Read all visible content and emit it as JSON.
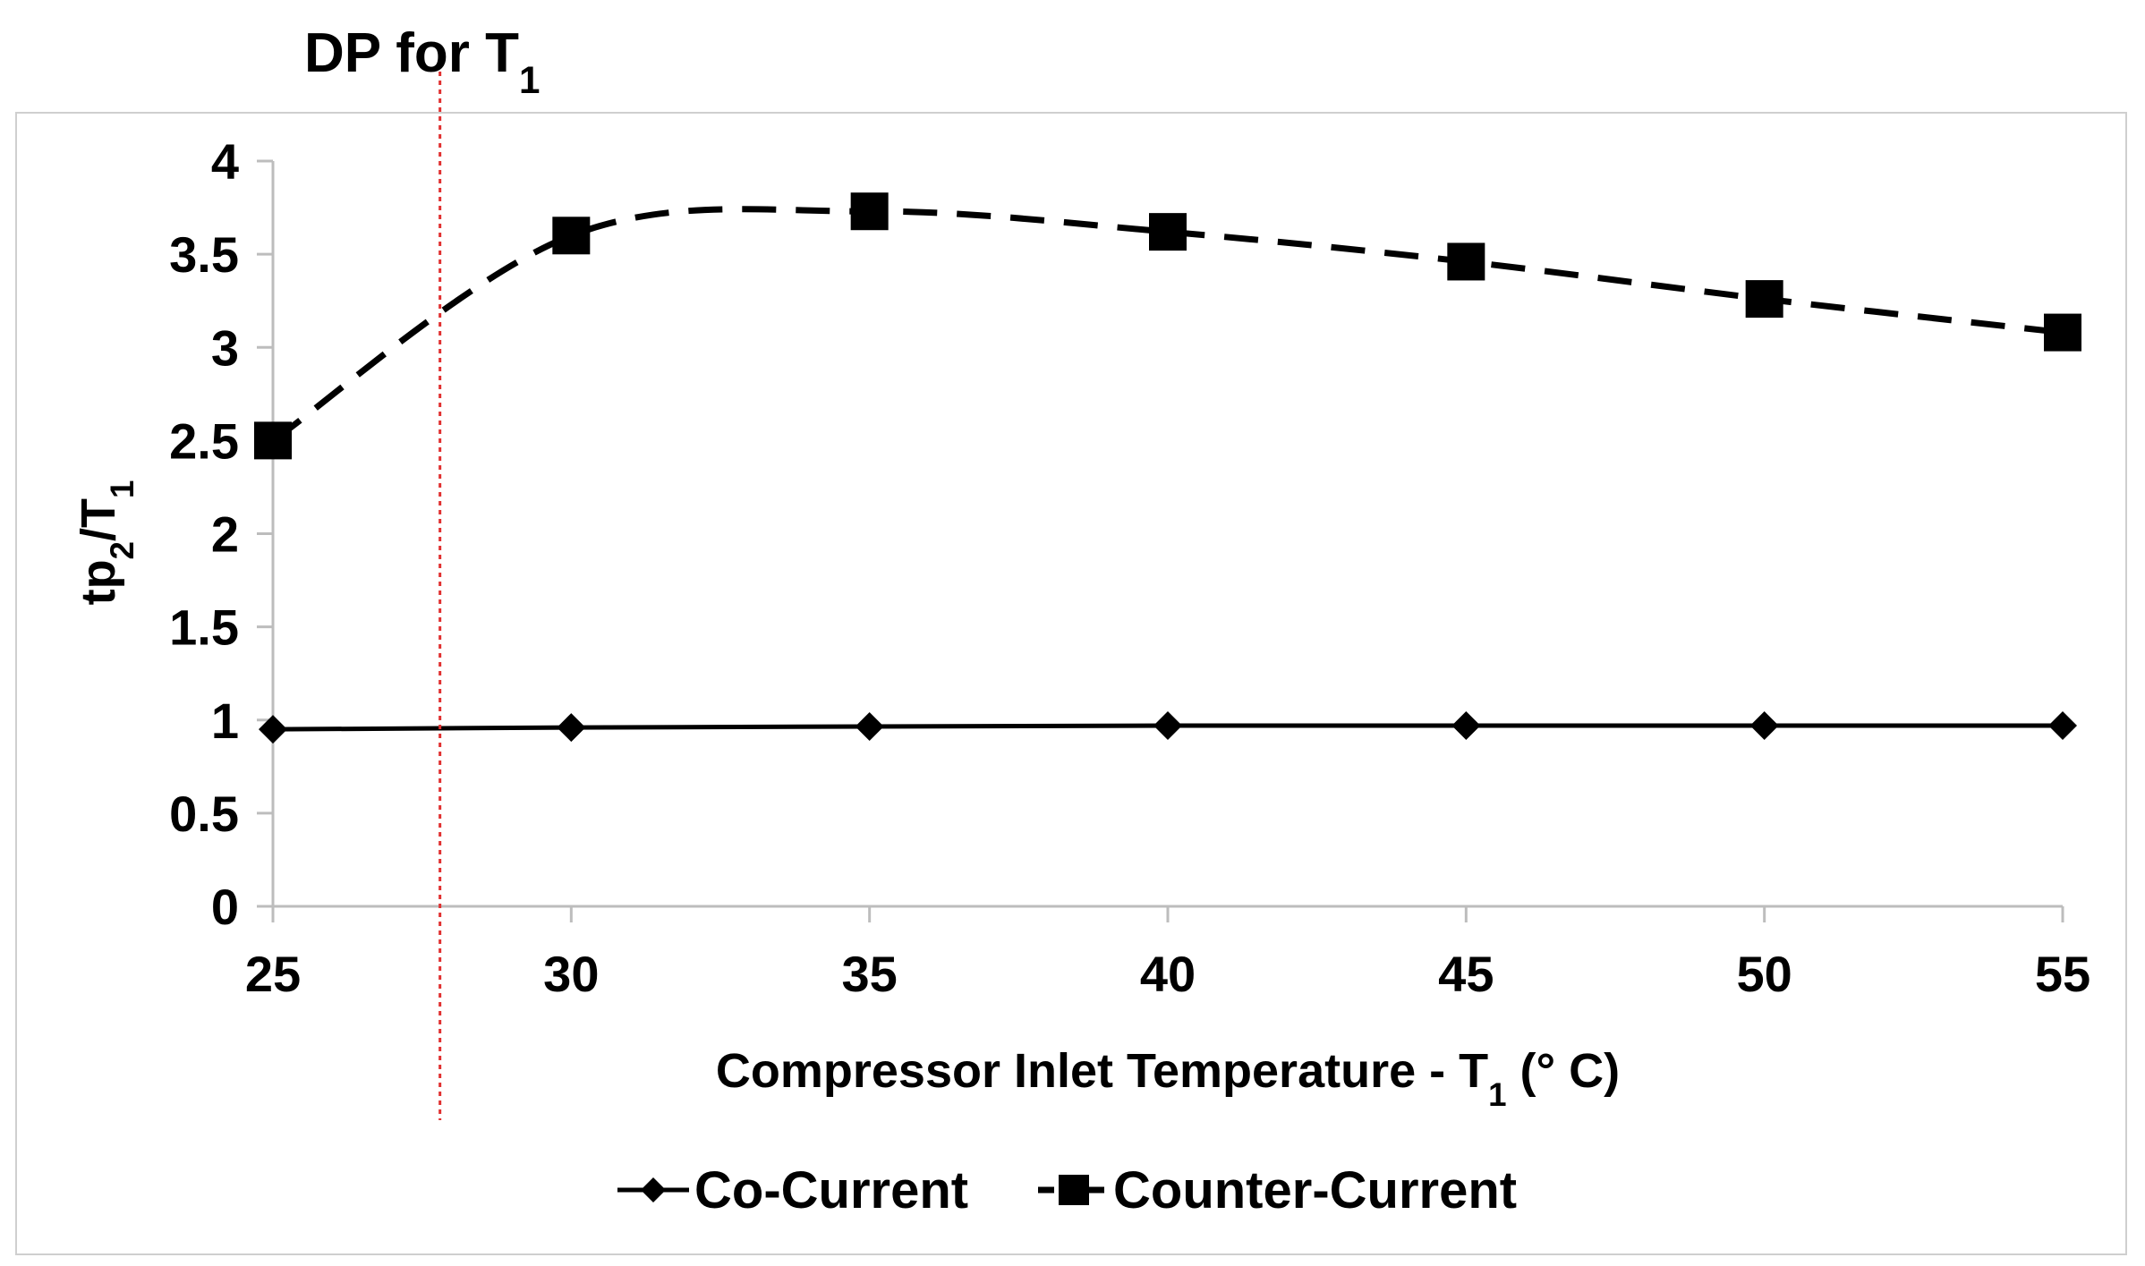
{
  "chart_data": {
    "type": "line",
    "xlabel": "Compressor Inlet Temperature - T₁ (° C)",
    "ylabel": "tp₂/T₁",
    "x": [
      25,
      30,
      35,
      40,
      45,
      50,
      55
    ],
    "xlim": [
      25,
      55
    ],
    "ylim": [
      0,
      4
    ],
    "x_ticks": [
      "25",
      "30",
      "35",
      "40",
      "45",
      "50",
      "55"
    ],
    "y_ticks": [
      "0",
      "0.5",
      "1",
      "1.5",
      "2",
      "2.5",
      "3",
      "3.5",
      "4"
    ],
    "grid": false,
    "legend_position": "bottom",
    "series": [
      {
        "name": "Co-Current",
        "marker": "diamond",
        "line_style": "solid",
        "color": "#000000",
        "values": [
          0.95,
          0.96,
          0.965,
          0.97,
          0.97,
          0.97,
          0.97
        ]
      },
      {
        "name": "Counter-Current",
        "marker": "square",
        "line_style": "dashed",
        "color": "#000000",
        "values": [
          2.5,
          3.6,
          3.73,
          3.62,
          3.46,
          3.26,
          3.08
        ]
      }
    ],
    "annotations": [
      {
        "text": "DP for T₁",
        "type": "vertical-line",
        "x": 27.8,
        "color": "#e03030",
        "line_style": "dotted"
      }
    ]
  }
}
